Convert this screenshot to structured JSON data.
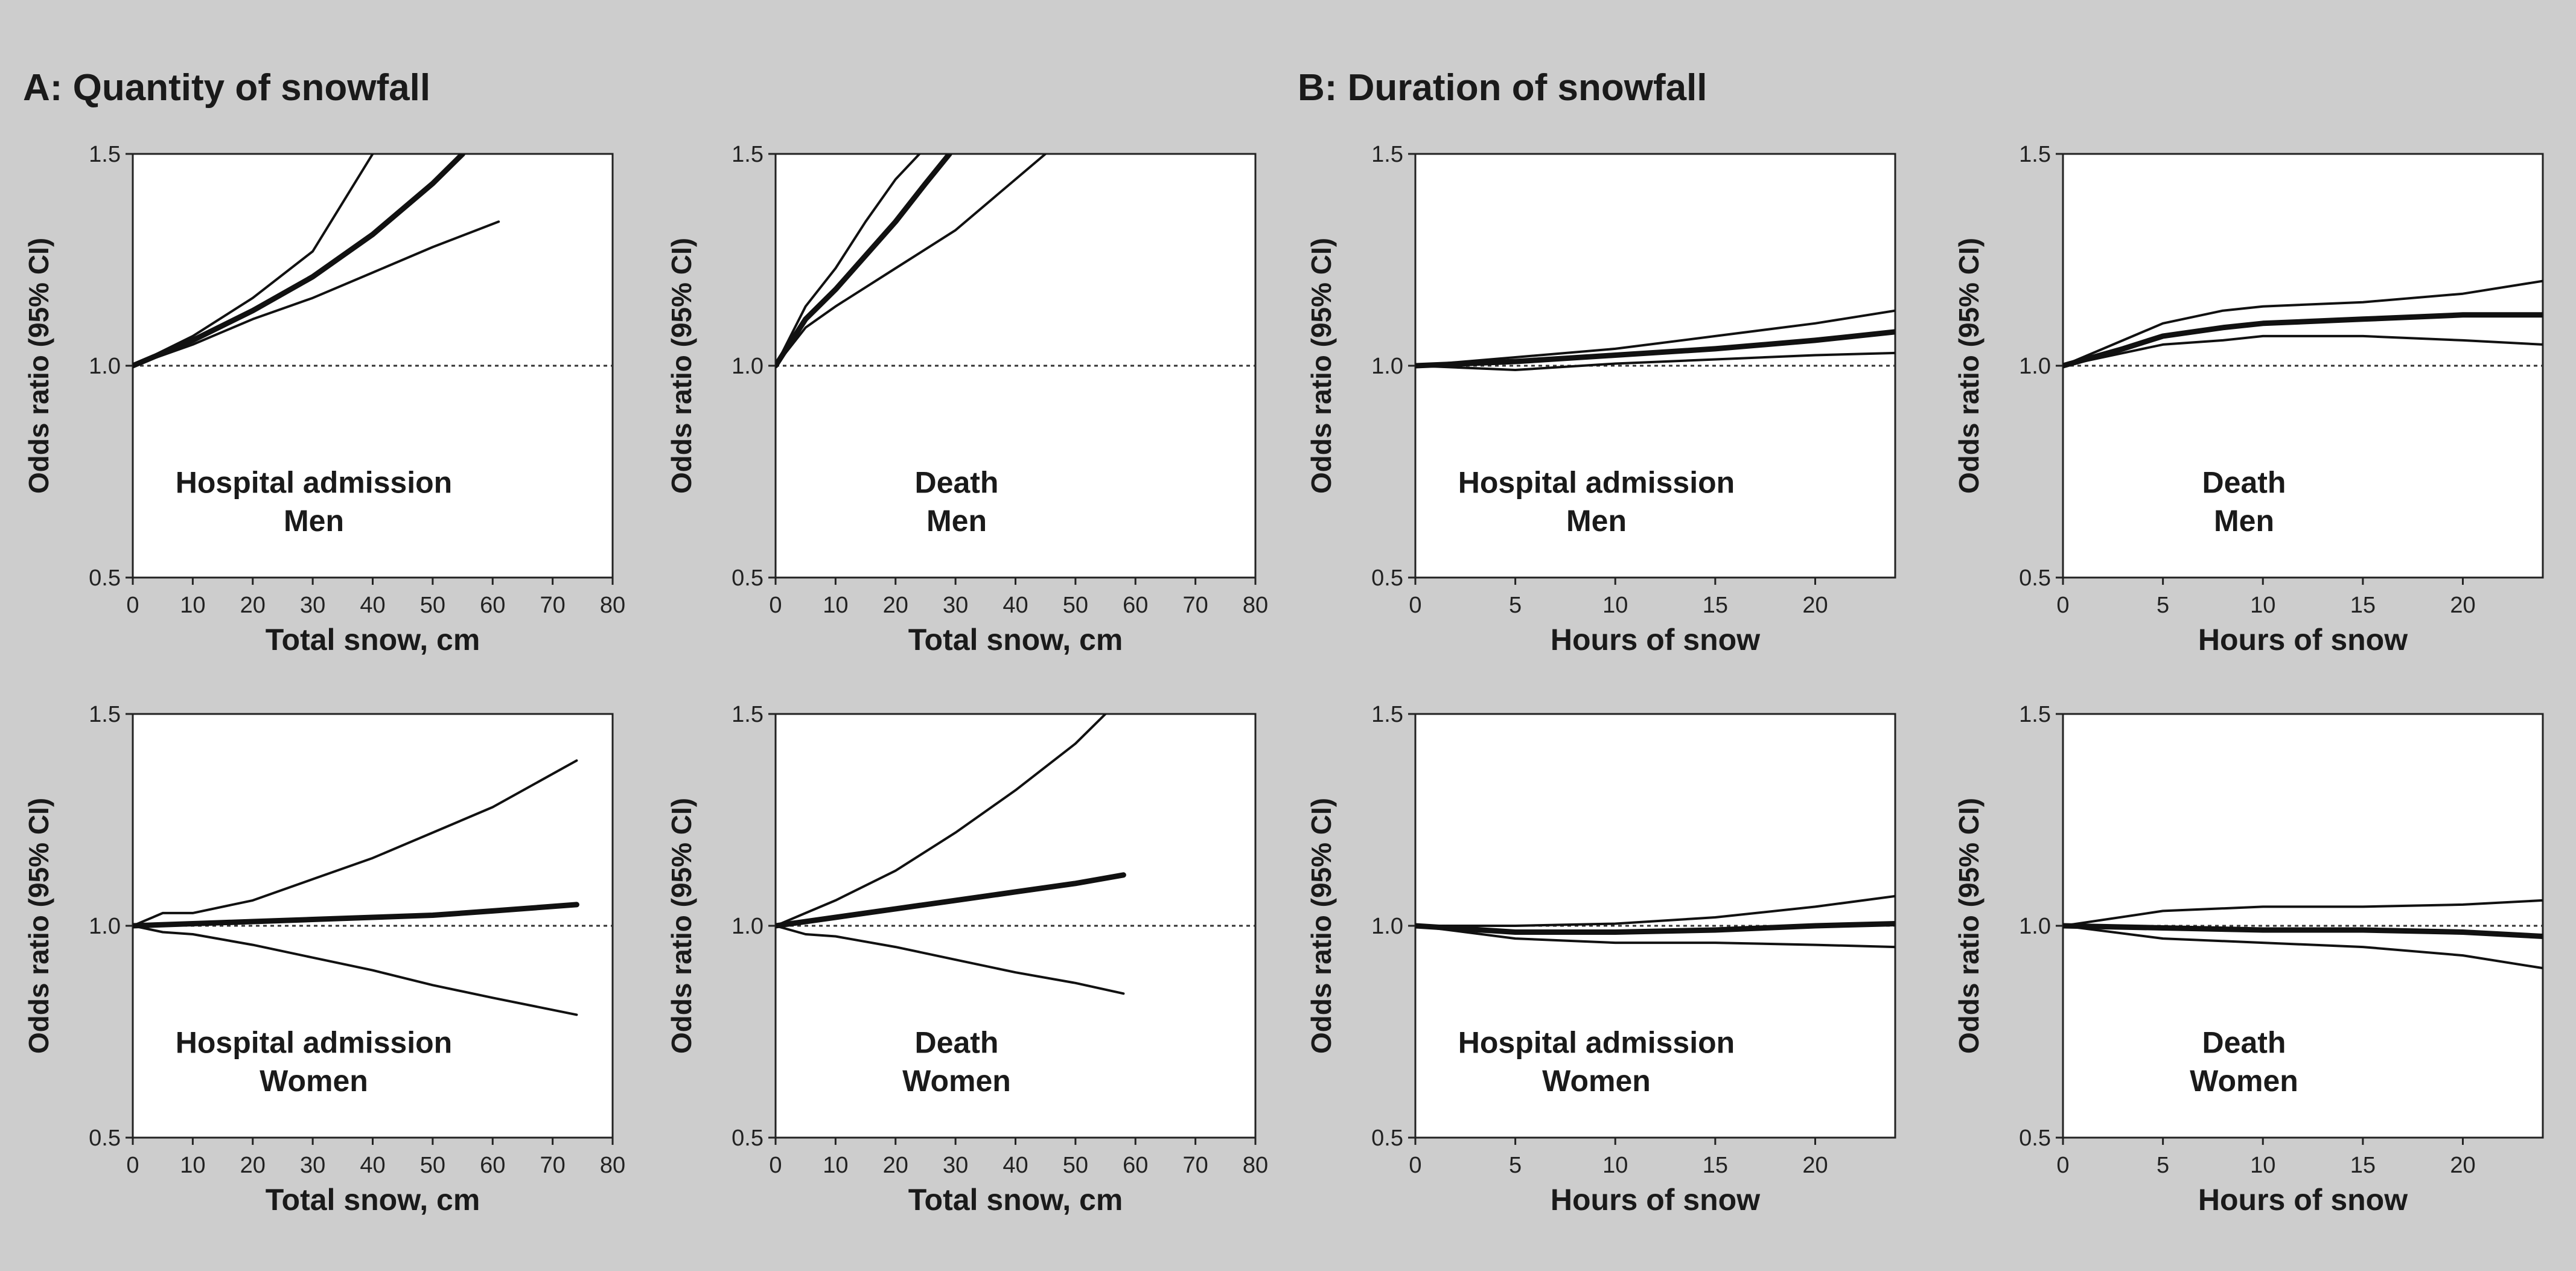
{
  "sections": {
    "a_title": "A: Quantity of snowfall",
    "b_title": "B: Duration of snowfall"
  },
  "chart_data": [
    {
      "type": "line",
      "panel": "A-men-hospital",
      "annotation": [
        "Hospital admission",
        "Men"
      ],
      "xlabel": "Total snow, cm",
      "ylabel": "Odds ratio (95% CI)",
      "xlim": [
        0,
        80
      ],
      "ylim": [
        0.5,
        1.5
      ],
      "xticks": [
        0,
        10,
        20,
        30,
        40,
        50,
        60,
        70,
        80
      ],
      "yticks": [
        0.5,
        1.0,
        1.5
      ],
      "reference_line": 1.0,
      "series": [
        {
          "role": "upper",
          "x": [
            0,
            10,
            20,
            30,
            40
          ],
          "y": [
            1.0,
            1.07,
            1.16,
            1.27,
            1.5
          ]
        },
        {
          "role": "estimate",
          "x": [
            0,
            10,
            20,
            30,
            40,
            50,
            55
          ],
          "y": [
            1.0,
            1.06,
            1.13,
            1.21,
            1.31,
            1.43,
            1.5
          ]
        },
        {
          "role": "lower",
          "x": [
            0,
            10,
            20,
            30,
            40,
            50,
            61
          ],
          "y": [
            1.0,
            1.05,
            1.11,
            1.16,
            1.22,
            1.28,
            1.34
          ]
        }
      ]
    },
    {
      "type": "line",
      "panel": "A-men-death",
      "annotation": [
        "Death",
        "Men"
      ],
      "xlabel": "Total snow, cm",
      "ylabel": "Odds ratio (95% CI)",
      "xlim": [
        0,
        80
      ],
      "ylim": [
        0.5,
        1.5
      ],
      "xticks": [
        0,
        10,
        20,
        30,
        40,
        50,
        60,
        70,
        80
      ],
      "yticks": [
        0.5,
        1.0,
        1.5
      ],
      "reference_line": 1.0,
      "series": [
        {
          "role": "upper",
          "x": [
            0,
            5,
            10,
            15,
            20,
            24
          ],
          "y": [
            1.0,
            1.14,
            1.23,
            1.34,
            1.44,
            1.5
          ]
        },
        {
          "role": "estimate",
          "x": [
            0,
            5,
            10,
            15,
            20,
            25,
            29
          ],
          "y": [
            1.0,
            1.11,
            1.18,
            1.26,
            1.34,
            1.43,
            1.5
          ]
        },
        {
          "role": "lower",
          "x": [
            0,
            5,
            10,
            20,
            30,
            40,
            45
          ],
          "y": [
            1.0,
            1.09,
            1.14,
            1.23,
            1.32,
            1.44,
            1.5
          ]
        }
      ]
    },
    {
      "type": "line",
      "panel": "B-men-hospital",
      "annotation": [
        "Hospital admission",
        "Men"
      ],
      "xlabel": "Hours of snow",
      "ylabel": "Odds ratio (95% CI)",
      "xlim": [
        0,
        24
      ],
      "ylim": [
        0.5,
        1.5
      ],
      "xticks": [
        0,
        5,
        10,
        15,
        20
      ],
      "yticks": [
        0.5,
        1.0,
        1.5
      ],
      "reference_line": 1.0,
      "series": [
        {
          "role": "upper",
          "x": [
            0,
            5,
            10,
            15,
            20,
            24
          ],
          "y": [
            1.0,
            1.02,
            1.04,
            1.07,
            1.1,
            1.13
          ]
        },
        {
          "role": "estimate",
          "x": [
            0,
            5,
            10,
            15,
            20,
            24
          ],
          "y": [
            1.0,
            1.01,
            1.025,
            1.04,
            1.06,
            1.08
          ]
        },
        {
          "role": "lower",
          "x": [
            0,
            5,
            10,
            15,
            20,
            24
          ],
          "y": [
            1.0,
            0.99,
            1.005,
            1.015,
            1.025,
            1.03
          ]
        }
      ]
    },
    {
      "type": "line",
      "panel": "B-men-death",
      "annotation": [
        "Death",
        "Men"
      ],
      "xlabel": "Hours of snow",
      "ylabel": "Odds ratio (95% CI)",
      "xlim": [
        0,
        24
      ],
      "ylim": [
        0.5,
        1.5
      ],
      "xticks": [
        0,
        5,
        10,
        15,
        20
      ],
      "yticks": [
        0.5,
        1.0,
        1.5
      ],
      "reference_line": 1.0,
      "series": [
        {
          "role": "upper",
          "x": [
            0,
            3,
            5,
            8,
            10,
            15,
            20,
            24
          ],
          "y": [
            1.0,
            1.06,
            1.1,
            1.13,
            1.14,
            1.15,
            1.17,
            1.2
          ]
        },
        {
          "role": "estimate",
          "x": [
            0,
            3,
            5,
            8,
            10,
            15,
            20,
            24
          ],
          "y": [
            1.0,
            1.04,
            1.07,
            1.09,
            1.1,
            1.11,
            1.12,
            1.12
          ]
        },
        {
          "role": "lower",
          "x": [
            0,
            3,
            5,
            8,
            10,
            15,
            20,
            24
          ],
          "y": [
            1.0,
            1.03,
            1.05,
            1.06,
            1.07,
            1.07,
            1.06,
            1.05
          ]
        }
      ]
    },
    {
      "type": "line",
      "panel": "A-women-hospital",
      "annotation": [
        "Hospital admission",
        "Women"
      ],
      "xlabel": "Total snow, cm",
      "ylabel": "Odds ratio (95% CI)",
      "xlim": [
        0,
        80
      ],
      "ylim": [
        0.5,
        1.5
      ],
      "xticks": [
        0,
        10,
        20,
        30,
        40,
        50,
        60,
        70,
        80
      ],
      "yticks": [
        0.5,
        1.0,
        1.5
      ],
      "reference_line": 1.0,
      "series": [
        {
          "role": "upper",
          "x": [
            0,
            5,
            10,
            20,
            30,
            40,
            50,
            60,
            74
          ],
          "y": [
            1.0,
            1.03,
            1.03,
            1.06,
            1.11,
            1.16,
            1.22,
            1.28,
            1.39
          ]
        },
        {
          "role": "estimate",
          "x": [
            0,
            10,
            20,
            30,
            40,
            50,
            60,
            74
          ],
          "y": [
            1.0,
            1.005,
            1.01,
            1.015,
            1.02,
            1.025,
            1.035,
            1.05
          ]
        },
        {
          "role": "lower",
          "x": [
            0,
            5,
            10,
            20,
            30,
            40,
            50,
            60,
            74
          ],
          "y": [
            1.0,
            0.985,
            0.98,
            0.955,
            0.925,
            0.895,
            0.86,
            0.83,
            0.79
          ]
        }
      ]
    },
    {
      "type": "line",
      "panel": "A-women-death",
      "annotation": [
        "Death",
        "Women"
      ],
      "xlabel": "Total snow, cm",
      "ylabel": "Odds ratio (95% CI)",
      "xlim": [
        0,
        80
      ],
      "ylim": [
        0.5,
        1.5
      ],
      "xticks": [
        0,
        10,
        20,
        30,
        40,
        50,
        60,
        70,
        80
      ],
      "yticks": [
        0.5,
        1.0,
        1.5
      ],
      "reference_line": 1.0,
      "series": [
        {
          "role": "upper",
          "x": [
            0,
            5,
            10,
            20,
            30,
            40,
            50,
            55
          ],
          "y": [
            1.0,
            1.03,
            1.06,
            1.13,
            1.22,
            1.32,
            1.43,
            1.5
          ]
        },
        {
          "role": "estimate",
          "x": [
            0,
            10,
            20,
            30,
            40,
            50,
            58
          ],
          "y": [
            1.0,
            1.02,
            1.04,
            1.06,
            1.08,
            1.1,
            1.12
          ]
        },
        {
          "role": "lower",
          "x": [
            0,
            5,
            10,
            20,
            30,
            40,
            50,
            58
          ],
          "y": [
            1.0,
            0.98,
            0.975,
            0.95,
            0.92,
            0.89,
            0.865,
            0.84
          ]
        }
      ]
    },
    {
      "type": "line",
      "panel": "B-women-hospital",
      "annotation": [
        "Hospital admission",
        "Women"
      ],
      "xlabel": "Hours of snow",
      "ylabel": "Odds ratio (95% CI)",
      "xlim": [
        0,
        24
      ],
      "ylim": [
        0.5,
        1.5
      ],
      "xticks": [
        0,
        5,
        10,
        15,
        20
      ],
      "yticks": [
        0.5,
        1.0,
        1.5
      ],
      "reference_line": 1.0,
      "series": [
        {
          "role": "upper",
          "x": [
            0,
            5,
            10,
            15,
            20,
            24
          ],
          "y": [
            1.0,
            1.0,
            1.005,
            1.02,
            1.045,
            1.07
          ]
        },
        {
          "role": "estimate",
          "x": [
            0,
            5,
            10,
            15,
            20,
            24
          ],
          "y": [
            1.0,
            0.985,
            0.985,
            0.99,
            1.0,
            1.005
          ]
        },
        {
          "role": "lower",
          "x": [
            0,
            5,
            10,
            15,
            20,
            24
          ],
          "y": [
            1.0,
            0.97,
            0.96,
            0.96,
            0.955,
            0.95
          ]
        }
      ]
    },
    {
      "type": "line",
      "panel": "B-women-death",
      "annotation": [
        "Death",
        "Women"
      ],
      "xlabel": "Hours of snow",
      "ylabel": "Odds ratio (95% CI)",
      "xlim": [
        0,
        24
      ],
      "ylim": [
        0.5,
        1.5
      ],
      "xticks": [
        0,
        5,
        10,
        15,
        20
      ],
      "yticks": [
        0.5,
        1.0,
        1.5
      ],
      "reference_line": 1.0,
      "series": [
        {
          "role": "upper",
          "x": [
            0,
            5,
            10,
            15,
            20,
            24
          ],
          "y": [
            1.0,
            1.035,
            1.045,
            1.045,
            1.05,
            1.06
          ]
        },
        {
          "role": "estimate",
          "x": [
            0,
            5,
            10,
            15,
            20,
            24
          ],
          "y": [
            1.0,
            0.995,
            0.99,
            0.99,
            0.985,
            0.975
          ]
        },
        {
          "role": "lower",
          "x": [
            0,
            5,
            10,
            15,
            20,
            24
          ],
          "y": [
            1.0,
            0.97,
            0.96,
            0.95,
            0.93,
            0.9
          ]
        }
      ]
    }
  ]
}
